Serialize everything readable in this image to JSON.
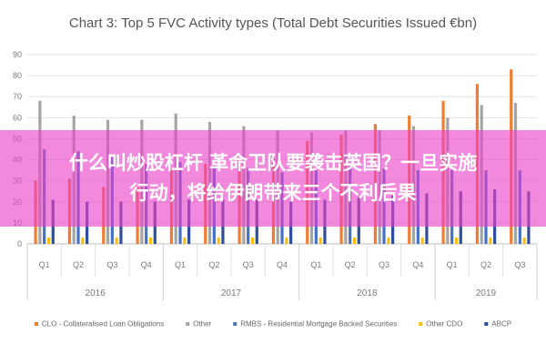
{
  "chart_data": {
    "type": "bar",
    "title": "Chart 3: Top 5 FVC Activity types (Total Debt Securities Issued €bn)",
    "xlabel": "",
    "ylabel": "",
    "ylim": [
      0,
      90
    ],
    "yticks": [
      0,
      10,
      20,
      30,
      40,
      50,
      60,
      70,
      80,
      90
    ],
    "grid": true,
    "legend_position": "bottom",
    "categories": [
      "Q1",
      "Q2",
      "Q3",
      "Q4",
      "Q1",
      "Q2",
      "Q3",
      "Q4",
      "Q1",
      "Q2",
      "Q3",
      "Q4",
      "Q1",
      "Q2",
      "Q3"
    ],
    "groups": [
      {
        "label": "2016",
        "count": 4
      },
      {
        "label": "2017",
        "count": 4
      },
      {
        "label": "2018",
        "count": 4
      },
      {
        "label": "2019",
        "count": 3
      }
    ],
    "series": [
      {
        "name": "CLO - Collateralised Loan Obligations",
        "color": "#ed7d31",
        "values": [
          30,
          31,
          27,
          27,
          36,
          38,
          39,
          42,
          49,
          52,
          57,
          61,
          68,
          76,
          83
        ]
      },
      {
        "name": "Other",
        "color": "#a5a5a5",
        "values": [
          68,
          61,
          59,
          59,
          62,
          58,
          56,
          54,
          53,
          54,
          54,
          56,
          60,
          66,
          67
        ]
      },
      {
        "name": "RMBS - Residential Mortgage Backed Securities",
        "color": "#4472c4",
        "values": [
          45,
          44,
          41,
          38,
          39,
          38,
          36,
          34,
          35,
          37,
          36,
          35,
          35,
          35,
          35
        ]
      },
      {
        "name": "Other CDO",
        "color": "#ffc000",
        "values": [
          3,
          3,
          3,
          3,
          3,
          3,
          3,
          3,
          3,
          3,
          3,
          3,
          3,
          3,
          3
        ]
      },
      {
        "name": "ABCP",
        "color": "#2f4f9e",
        "values": [
          21,
          20,
          20,
          20,
          21,
          21,
          21,
          20,
          21,
          22,
          23,
          24,
          25,
          26,
          25
        ]
      }
    ]
  },
  "overlay": {
    "headline_line1": "什么叫炒股杠杆 革命卫队要袭击英国？一旦实施",
    "headline_line2": "行动，将给伊朗带来三个不利后果"
  }
}
